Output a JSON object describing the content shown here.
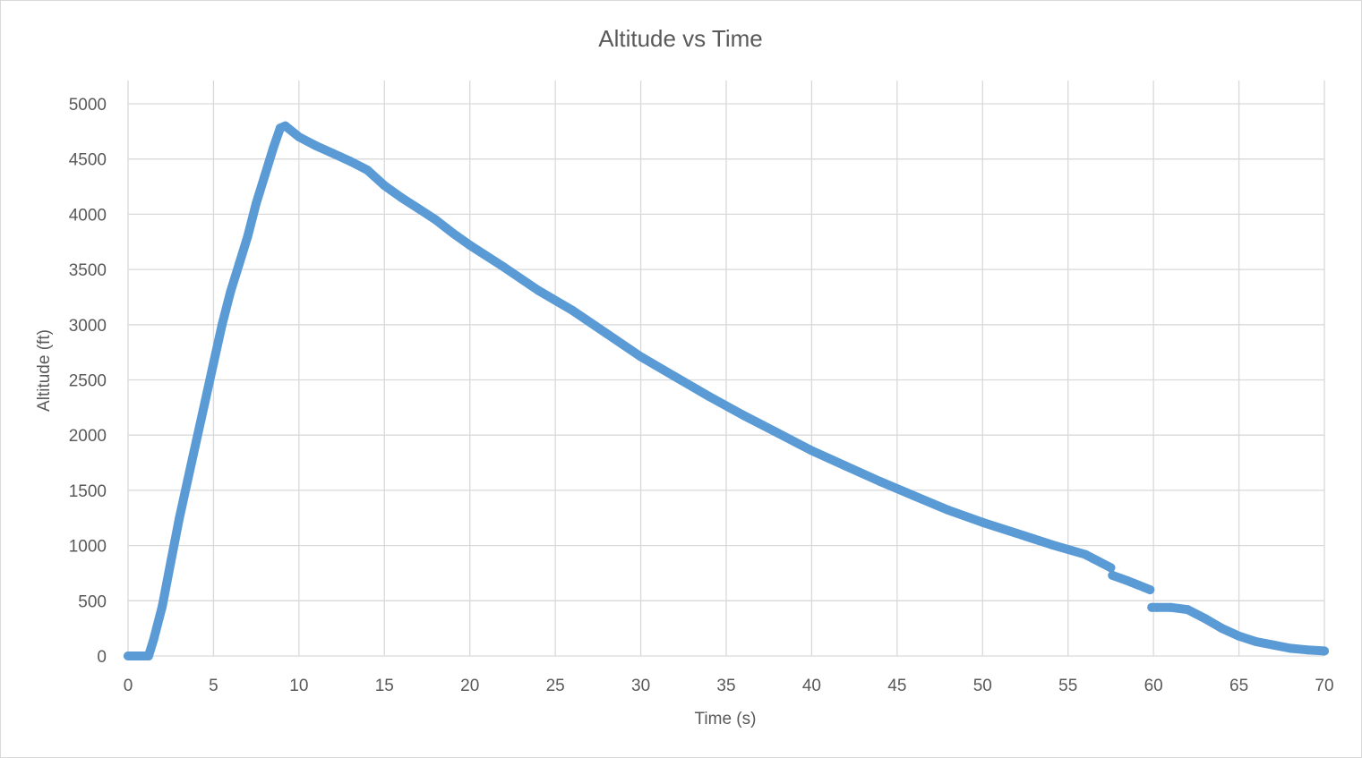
{
  "chart_data": {
    "type": "scatter",
    "title": "Altitude vs Time",
    "xlabel": "Time (s)",
    "ylabel": "Altitude (ft)",
    "xlim": [
      0,
      70
    ],
    "ylim": [
      0,
      5000
    ],
    "x_ticks": [
      "0",
      "5",
      "10",
      "15",
      "20",
      "25",
      "30",
      "35",
      "40",
      "45",
      "50",
      "55",
      "60",
      "65",
      "70"
    ],
    "y_ticks": [
      "0",
      "500",
      "1000",
      "1500",
      "2000",
      "2500",
      "3000",
      "3500",
      "4000",
      "4500",
      "5000"
    ],
    "grid": true,
    "legend": "none",
    "series_color": "#5b9bd5",
    "gridline_color": "#d9d9d9",
    "text_color": "#595959",
    "series": [
      {
        "points": [
          [
            0,
            0
          ],
          [
            1.2,
            0
          ],
          [
            1.5,
            150
          ],
          [
            2,
            450
          ],
          [
            2.5,
            850
          ],
          [
            3,
            1250
          ],
          [
            3.5,
            1600
          ],
          [
            4,
            1950
          ],
          [
            4.5,
            2300
          ],
          [
            5,
            2650
          ],
          [
            5.5,
            3000
          ],
          [
            6,
            3300
          ],
          [
            6.5,
            3550
          ],
          [
            7,
            3800
          ],
          [
            7.5,
            4100
          ],
          [
            8,
            4350
          ],
          [
            8.5,
            4600
          ],
          [
            8.9,
            4780
          ],
          [
            9.2,
            4800
          ],
          [
            10,
            4700
          ],
          [
            11,
            4620
          ],
          [
            12,
            4550
          ],
          [
            13,
            4480
          ],
          [
            14,
            4400
          ],
          [
            15,
            4260
          ],
          [
            16,
            4150
          ],
          [
            17,
            4050
          ],
          [
            18,
            3950
          ],
          [
            19,
            3830
          ],
          [
            20,
            3720
          ],
          [
            22,
            3520
          ],
          [
            24,
            3310
          ],
          [
            26,
            3130
          ],
          [
            28,
            2920
          ],
          [
            30,
            2710
          ],
          [
            32,
            2530
          ],
          [
            34,
            2350
          ],
          [
            36,
            2180
          ],
          [
            38,
            2020
          ],
          [
            40,
            1860
          ],
          [
            42,
            1720
          ],
          [
            44,
            1580
          ],
          [
            46,
            1450
          ],
          [
            48,
            1320
          ],
          [
            50,
            1210
          ],
          [
            52,
            1110
          ],
          [
            54,
            1010
          ],
          [
            56,
            920
          ],
          [
            57.5,
            800
          ],
          [
            57.6,
            730
          ],
          [
            58.5,
            680
          ],
          [
            59.8,
            600
          ],
          [
            59.9,
            440
          ],
          [
            60.2,
            440
          ],
          [
            61,
            440
          ],
          [
            62,
            420
          ],
          [
            63,
            340
          ],
          [
            64,
            250
          ],
          [
            65,
            180
          ],
          [
            66,
            130
          ],
          [
            67,
            100
          ],
          [
            68,
            70
          ],
          [
            69,
            55
          ],
          [
            70,
            45
          ]
        ]
      }
    ]
  }
}
